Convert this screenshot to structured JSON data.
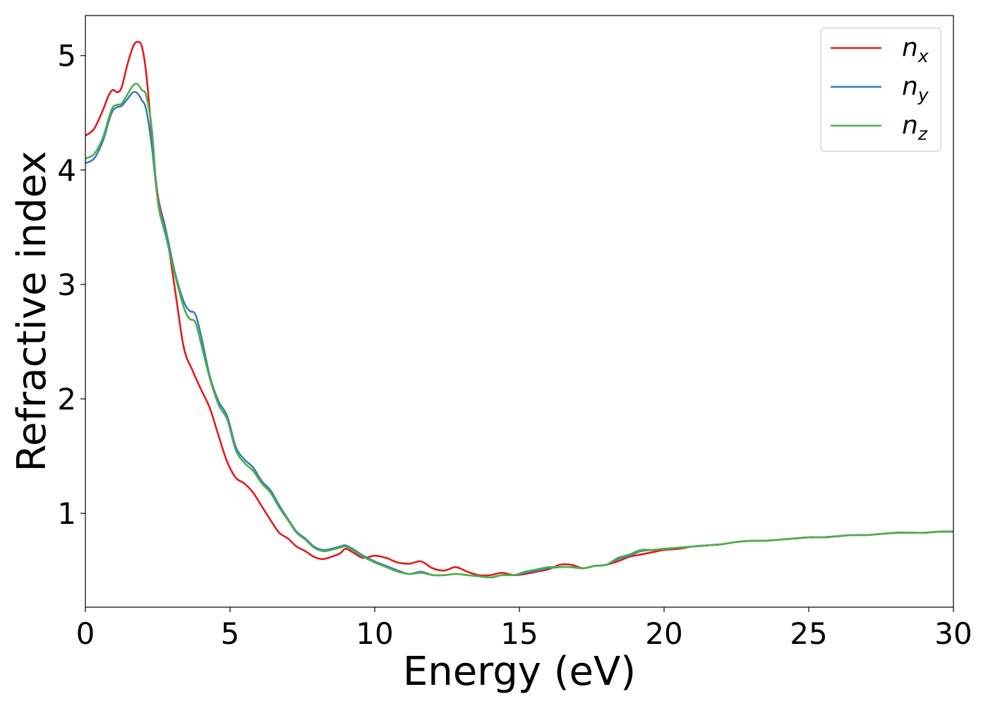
{
  "chart_data": {
    "type": "line",
    "title": "",
    "xlabel": "Energy (eV)",
    "ylabel": "Refractive index",
    "xlim": [
      0,
      30
    ],
    "ylim": [
      0.18,
      5.35
    ],
    "xticks": [
      0,
      5,
      10,
      15,
      20,
      25,
      30
    ],
    "yticks": [
      1,
      2,
      3,
      4,
      5
    ],
    "grid": false,
    "legend_position": "top-right",
    "series": [
      {
        "name": "n",
        "subscript": "x",
        "color": "#e41a1c",
        "x": [
          0,
          0.3,
          0.6,
          0.8,
          0.95,
          1.1,
          1.25,
          1.45,
          1.65,
          1.8,
          1.95,
          2.1,
          2.3,
          2.5,
          2.8,
          3.1,
          3.4,
          3.7,
          4.0,
          4.3,
          4.6,
          4.9,
          5.2,
          5.5,
          5.8,
          6.1,
          6.4,
          6.7,
          7.0,
          7.3,
          7.6,
          7.9,
          8.2,
          8.5,
          8.8,
          9.0,
          9.3,
          9.6,
          10.0,
          10.4,
          10.8,
          11.2,
          11.6,
          12.0,
          12.4,
          12.8,
          13.2,
          13.6,
          14.0,
          14.4,
          14.8,
          15.2,
          15.6,
          16.0,
          16.4,
          16.8,
          17.2,
          17.6,
          18.0,
          18.4,
          18.8,
          19.2,
          19.6,
          20.0,
          20.5,
          21.0,
          21.5,
          22.0,
          22.5,
          23.0,
          23.5,
          24.0,
          24.5,
          25.0,
          25.5,
          26.0,
          26.5,
          27.0,
          27.5,
          28.0,
          28.5,
          29.0,
          29.5,
          30.0
        ],
        "values": [
          4.3,
          4.36,
          4.52,
          4.65,
          4.7,
          4.68,
          4.72,
          4.92,
          5.08,
          5.12,
          5.08,
          4.85,
          4.3,
          3.78,
          3.45,
          2.95,
          2.45,
          2.25,
          2.08,
          1.92,
          1.68,
          1.45,
          1.31,
          1.26,
          1.18,
          1.06,
          0.94,
          0.83,
          0.78,
          0.71,
          0.67,
          0.62,
          0.6,
          0.62,
          0.65,
          0.69,
          0.65,
          0.61,
          0.63,
          0.61,
          0.57,
          0.56,
          0.58,
          0.52,
          0.5,
          0.53,
          0.49,
          0.46,
          0.46,
          0.48,
          0.46,
          0.47,
          0.49,
          0.51,
          0.55,
          0.55,
          0.52,
          0.54,
          0.55,
          0.58,
          0.62,
          0.64,
          0.66,
          0.68,
          0.69,
          0.71,
          0.72,
          0.73,
          0.75,
          0.76,
          0.76,
          0.77,
          0.78,
          0.79,
          0.79,
          0.8,
          0.81,
          0.81,
          0.82,
          0.83,
          0.83,
          0.83,
          0.84,
          0.84
        ]
      },
      {
        "name": "n",
        "subscript": "y",
        "color": "#377eb8",
        "x": [
          0,
          0.3,
          0.6,
          0.8,
          0.95,
          1.1,
          1.25,
          1.45,
          1.65,
          1.8,
          1.95,
          2.1,
          2.3,
          2.5,
          2.8,
          3.1,
          3.4,
          3.6,
          3.8,
          4.0,
          4.3,
          4.6,
          4.9,
          5.2,
          5.5,
          5.8,
          6.1,
          6.4,
          6.7,
          7.0,
          7.3,
          7.6,
          7.9,
          8.2,
          8.5,
          8.8,
          9.0,
          9.3,
          9.6,
          10.0,
          10.4,
          10.8,
          11.2,
          11.6,
          12.0,
          12.4,
          12.8,
          13.2,
          13.6,
          14.0,
          14.4,
          14.8,
          15.2,
          15.6,
          16.0,
          16.4,
          16.8,
          17.2,
          17.6,
          18.0,
          18.4,
          18.8,
          19.2,
          19.6,
          20.0,
          20.5,
          21.0,
          21.5,
          22.0,
          22.5,
          23.0,
          23.5,
          24.0,
          24.5,
          25.0,
          25.5,
          26.0,
          26.5,
          27.0,
          27.5,
          28.0,
          28.5,
          29.0,
          29.5,
          30.0
        ],
        "values": [
          4.06,
          4.1,
          4.25,
          4.42,
          4.52,
          4.55,
          4.56,
          4.62,
          4.68,
          4.67,
          4.61,
          4.53,
          4.2,
          3.75,
          3.45,
          3.1,
          2.85,
          2.77,
          2.74,
          2.55,
          2.2,
          1.98,
          1.85,
          1.58,
          1.47,
          1.4,
          1.28,
          1.2,
          1.07,
          0.95,
          0.84,
          0.78,
          0.71,
          0.68,
          0.69,
          0.71,
          0.72,
          0.68,
          0.63,
          0.58,
          0.54,
          0.5,
          0.47,
          0.49,
          0.46,
          0.46,
          0.47,
          0.46,
          0.45,
          0.44,
          0.46,
          0.46,
          0.48,
          0.5,
          0.52,
          0.53,
          0.53,
          0.52,
          0.54,
          0.55,
          0.6,
          0.63,
          0.67,
          0.68,
          0.69,
          0.7,
          0.71,
          0.72,
          0.73,
          0.75,
          0.76,
          0.76,
          0.77,
          0.78,
          0.79,
          0.79,
          0.8,
          0.81,
          0.81,
          0.82,
          0.83,
          0.83,
          0.83,
          0.84,
          0.84
        ]
      },
      {
        "name": "n",
        "subscript": "z",
        "color": "#4daf4a",
        "x": [
          0,
          0.3,
          0.6,
          0.8,
          0.95,
          1.1,
          1.25,
          1.45,
          1.65,
          1.8,
          1.95,
          2.1,
          2.3,
          2.5,
          2.8,
          3.1,
          3.4,
          3.6,
          3.8,
          4.0,
          4.3,
          4.6,
          4.9,
          5.2,
          5.5,
          5.8,
          6.1,
          6.4,
          6.7,
          7.0,
          7.3,
          7.6,
          7.9,
          8.2,
          8.5,
          8.8,
          9.0,
          9.3,
          9.6,
          10.0,
          10.4,
          10.8,
          11.2,
          11.6,
          12.0,
          12.4,
          12.8,
          13.2,
          13.6,
          14.0,
          14.4,
          14.8,
          15.2,
          15.6,
          16.0,
          16.4,
          16.8,
          17.2,
          17.6,
          18.0,
          18.4,
          18.8,
          19.2,
          19.6,
          20.0,
          20.5,
          21.0,
          21.5,
          22.0,
          22.5,
          23.0,
          23.5,
          24.0,
          24.5,
          25.0,
          25.5,
          26.0,
          26.5,
          27.0,
          27.5,
          28.0,
          28.5,
          29.0,
          29.5,
          30.0
        ],
        "values": [
          4.1,
          4.14,
          4.28,
          4.45,
          4.55,
          4.57,
          4.58,
          4.66,
          4.74,
          4.75,
          4.7,
          4.65,
          4.35,
          3.73,
          3.4,
          3.08,
          2.8,
          2.7,
          2.67,
          2.48,
          2.18,
          1.95,
          1.82,
          1.55,
          1.44,
          1.37,
          1.26,
          1.18,
          1.05,
          0.94,
          0.83,
          0.77,
          0.7,
          0.67,
          0.68,
          0.7,
          0.71,
          0.67,
          0.62,
          0.57,
          0.53,
          0.49,
          0.47,
          0.48,
          0.46,
          0.46,
          0.47,
          0.46,
          0.45,
          0.44,
          0.46,
          0.46,
          0.49,
          0.51,
          0.53,
          0.53,
          0.53,
          0.52,
          0.54,
          0.55,
          0.61,
          0.64,
          0.68,
          0.68,
          0.69,
          0.7,
          0.71,
          0.72,
          0.73,
          0.75,
          0.76,
          0.76,
          0.77,
          0.78,
          0.79,
          0.79,
          0.8,
          0.81,
          0.81,
          0.82,
          0.83,
          0.83,
          0.83,
          0.84,
          0.84
        ]
      }
    ]
  }
}
